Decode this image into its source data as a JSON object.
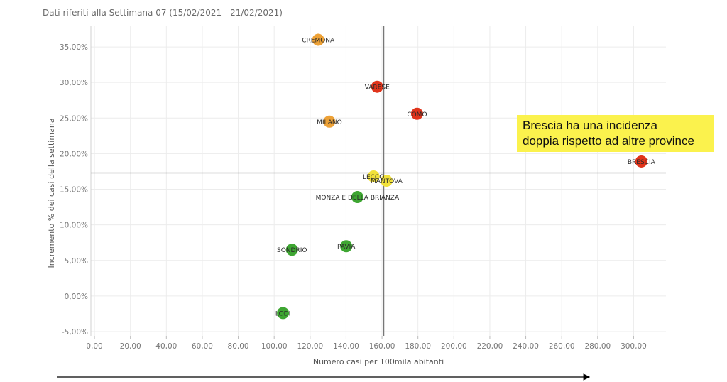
{
  "subtitle": "Dati riferiti alla Settimana 07 (15/02/2021 - 21/02/2021)",
  "note": {
    "line1": "Brescia ha una incidenza",
    "line2": "doppia rispetto ad altre province"
  },
  "colors": {
    "red": "#e0341b",
    "orange": "#eda136",
    "yellow": "#f1e13a",
    "green": "#3ea632",
    "note_bg": "#fbf24d"
  },
  "chart_data": {
    "type": "scatter",
    "xlabel": "Numero casi per 100mila abitanti",
    "ylabel": "Incremento % dei casi della settimana",
    "xlim": [
      -2,
      318
    ],
    "ylim": [
      -5.6,
      38.0
    ],
    "x_ticks": [
      0,
      20,
      40,
      60,
      80,
      100,
      120,
      140,
      160,
      180,
      200,
      220,
      240,
      260,
      280,
      300
    ],
    "x_tick_labels": [
      "0,00",
      "20,00",
      "40,00",
      "60,00",
      "80,00",
      "100,00",
      "120,00",
      "140,00",
      "160,00",
      "180,00",
      "200,00",
      "220,00",
      "240,00",
      "260,00",
      "280,00",
      "300,00"
    ],
    "y_ticks": [
      -5,
      0,
      5,
      10,
      15,
      20,
      25,
      30,
      35
    ],
    "y_tick_labels": [
      "-5,00%",
      "0,00%",
      "5,00%",
      "10,00%",
      "15,00%",
      "20,00%",
      "25,00%",
      "30,00%",
      "35,00%"
    ],
    "reference_lines": {
      "x": 161,
      "y": 17.3
    },
    "grid": true,
    "points": [
      {
        "label": "CREMONA",
        "x": 124.5,
        "y": 36.0,
        "color": "orange"
      },
      {
        "label": "VARESE",
        "x": 157.3,
        "y": 29.4,
        "color": "red"
      },
      {
        "label": "COMO",
        "x": 179.5,
        "y": 25.6,
        "color": "red"
      },
      {
        "label": "MILANO",
        "x": 130.7,
        "y": 24.5,
        "color": "orange"
      },
      {
        "label": "BRESCIA",
        "x": 304.3,
        "y": 18.9,
        "color": "red"
      },
      {
        "label": "LECCO",
        "x": 155.3,
        "y": 16.8,
        "color": "yellow"
      },
      {
        "label": "MANTOVA",
        "x": 162.5,
        "y": 16.2,
        "color": "yellow"
      },
      {
        "label": "MONZA E DELLA BRIANZA",
        "x": 146.3,
        "y": 13.9,
        "color": "green"
      },
      {
        "label": "PAVIA",
        "x": 140.1,
        "y": 7.0,
        "color": "green"
      },
      {
        "label": "SONDRIO",
        "x": 109.9,
        "y": 6.5,
        "color": "green"
      },
      {
        "label": "LODI",
        "x": 104.9,
        "y": -2.4,
        "color": "green"
      }
    ]
  }
}
